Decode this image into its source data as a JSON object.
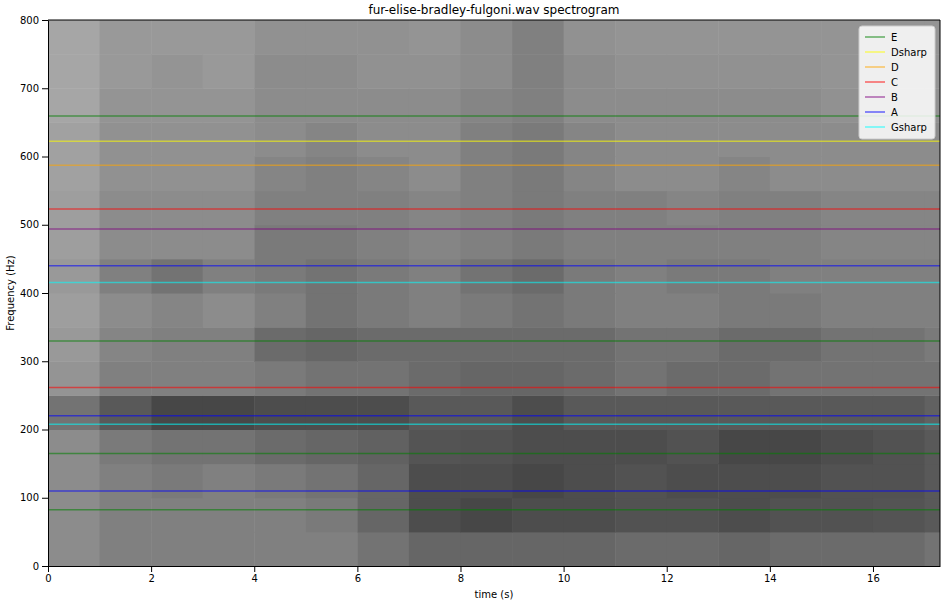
{
  "chart_data": {
    "type": "heatmap",
    "title": "fur-elise-bradley-fulgoni.wav spectrogram",
    "x_label": "time (s)",
    "y_label": "Frequency (Hz)",
    "xlim": [
      0,
      17.3
    ],
    "xticks": [
      0,
      2,
      4,
      6,
      8,
      10,
      12,
      14,
      16
    ],
    "ylim": [
      0,
      800
    ],
    "yticks": [
      0,
      100,
      200,
      300,
      400,
      500,
      600,
      700,
      800
    ],
    "zlim": [
      0,
      1
    ],
    "x_bins": [
      0,
      1,
      2,
      3,
      4,
      5,
      6,
      7,
      8,
      9,
      10,
      11,
      12,
      13,
      14,
      15,
      16,
      17,
      17.3
    ],
    "y_bins": [
      0,
      50,
      100,
      150,
      200,
      250,
      300,
      350,
      400,
      450,
      500,
      550,
      600,
      650,
      700,
      750,
      800
    ],
    "cells": [
      [
        0.55,
        0.5,
        0.5,
        0.5,
        0.5,
        0.5,
        0.45,
        0.4,
        0.4,
        0.4,
        0.4,
        0.42,
        0.42,
        0.4,
        0.42,
        0.42,
        0.42,
        0.45
      ],
      [
        0.55,
        0.5,
        0.5,
        0.5,
        0.5,
        0.48,
        0.4,
        0.3,
        0.28,
        0.3,
        0.3,
        0.32,
        0.32,
        0.3,
        0.32,
        0.32,
        0.33,
        0.35
      ],
      [
        0.55,
        0.5,
        0.48,
        0.5,
        0.48,
        0.45,
        0.4,
        0.3,
        0.3,
        0.28,
        0.3,
        0.32,
        0.3,
        0.3,
        0.3,
        0.32,
        0.32,
        0.35
      ],
      [
        0.55,
        0.48,
        0.45,
        0.45,
        0.42,
        0.4,
        0.38,
        0.33,
        0.32,
        0.3,
        0.3,
        0.3,
        0.32,
        0.28,
        0.28,
        0.3,
        0.32,
        0.35
      ],
      [
        0.45,
        0.35,
        0.28,
        0.28,
        0.3,
        0.3,
        0.3,
        0.35,
        0.35,
        0.3,
        0.35,
        0.35,
        0.35,
        0.35,
        0.35,
        0.35,
        0.35,
        0.38
      ],
      [
        0.58,
        0.5,
        0.5,
        0.5,
        0.48,
        0.45,
        0.45,
        0.42,
        0.4,
        0.4,
        0.42,
        0.45,
        0.42,
        0.42,
        0.45,
        0.45,
        0.45,
        0.45
      ],
      [
        0.6,
        0.52,
        0.5,
        0.5,
        0.42,
        0.4,
        0.42,
        0.42,
        0.42,
        0.42,
        0.42,
        0.45,
        0.45,
        0.42,
        0.42,
        0.45,
        0.45,
        0.48
      ],
      [
        0.62,
        0.55,
        0.52,
        0.55,
        0.5,
        0.45,
        0.48,
        0.5,
        0.48,
        0.45,
        0.48,
        0.5,
        0.5,
        0.48,
        0.48,
        0.5,
        0.5,
        0.5
      ],
      [
        0.6,
        0.5,
        0.45,
        0.5,
        0.48,
        0.45,
        0.48,
        0.5,
        0.45,
        0.42,
        0.48,
        0.5,
        0.48,
        0.48,
        0.5,
        0.5,
        0.5,
        0.5
      ],
      [
        0.62,
        0.55,
        0.55,
        0.55,
        0.48,
        0.48,
        0.5,
        0.52,
        0.5,
        0.48,
        0.5,
        0.5,
        0.5,
        0.5,
        0.5,
        0.52,
        0.52,
        0.52
      ],
      [
        0.62,
        0.55,
        0.55,
        0.55,
        0.5,
        0.5,
        0.5,
        0.52,
        0.5,
        0.48,
        0.5,
        0.5,
        0.52,
        0.5,
        0.5,
        0.52,
        0.52,
        0.52
      ],
      [
        0.63,
        0.57,
        0.57,
        0.57,
        0.52,
        0.5,
        0.52,
        0.55,
        0.5,
        0.48,
        0.52,
        0.55,
        0.55,
        0.52,
        0.55,
        0.55,
        0.55,
        0.55
      ],
      [
        0.63,
        0.57,
        0.57,
        0.57,
        0.55,
        0.52,
        0.55,
        0.55,
        0.5,
        0.48,
        0.52,
        0.55,
        0.55,
        0.55,
        0.55,
        0.55,
        0.55,
        0.55
      ],
      [
        0.65,
        0.58,
        0.58,
        0.58,
        0.55,
        0.55,
        0.55,
        0.55,
        0.52,
        0.5,
        0.55,
        0.55,
        0.55,
        0.55,
        0.55,
        0.57,
        0.57,
        0.57
      ],
      [
        0.65,
        0.6,
        0.58,
        0.6,
        0.55,
        0.55,
        0.57,
        0.57,
        0.55,
        0.5,
        0.55,
        0.57,
        0.57,
        0.57,
        0.57,
        0.58,
        0.58,
        0.58
      ],
      [
        0.65,
        0.6,
        0.6,
        0.6,
        0.57,
        0.57,
        0.57,
        0.58,
        0.55,
        0.5,
        0.57,
        0.58,
        0.58,
        0.58,
        0.58,
        0.58,
        0.58,
        0.58
      ]
    ],
    "legend": "upper right",
    "series": [
      {
        "name": "E",
        "color": "green",
        "values": [
          82.41,
          164.81,
          329.63,
          659.26
        ]
      },
      {
        "name": "Dsharp",
        "color": "yellow",
        "values": [
          622.25
        ]
      },
      {
        "name": "D",
        "color": "orange",
        "values": [
          587.33
        ]
      },
      {
        "name": "C",
        "color": "red",
        "values": [
          261.63,
          523.25
        ]
      },
      {
        "name": "B",
        "color": "purple",
        "values": [
          493.88
        ]
      },
      {
        "name": "A",
        "color": "blue",
        "values": [
          110,
          220,
          440
        ]
      },
      {
        "name": "Gsharp",
        "color": "cyan",
        "values": [
          207.65,
          415.3
        ]
      }
    ]
  }
}
